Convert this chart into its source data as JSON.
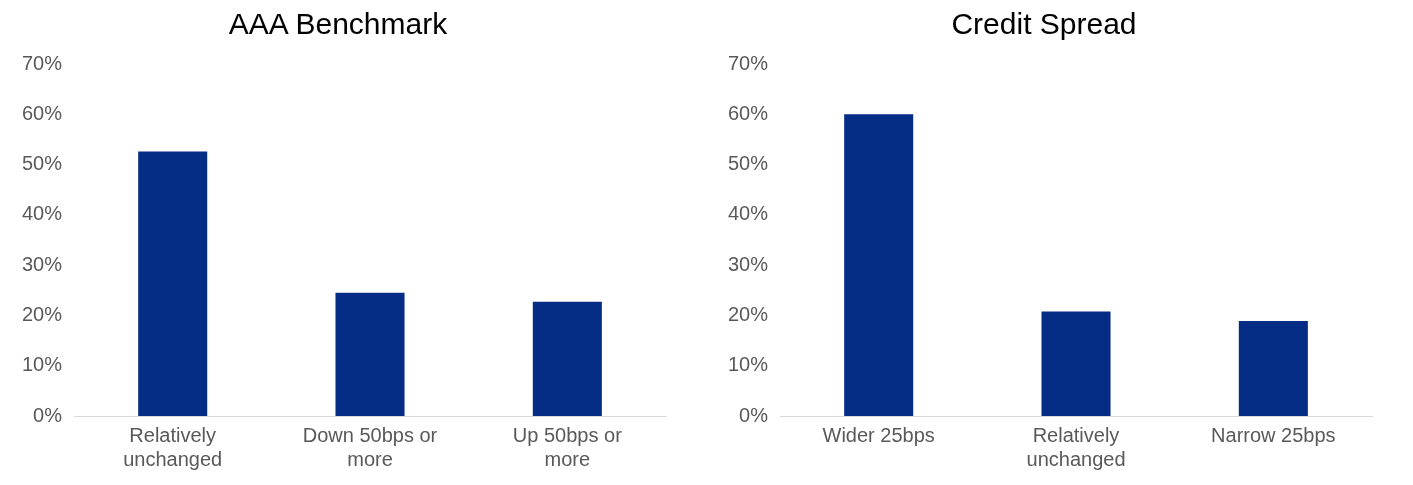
{
  "chart_data": [
    {
      "type": "bar",
      "title": "AAA Benchmark",
      "categories": [
        "Relatively unchanged",
        "Down 50bps or more",
        "Up 50bps or more"
      ],
      "values": [
        52.6,
        24.5,
        22.7
      ],
      "color": "#062d86",
      "ylim": [
        0,
        70
      ],
      "yticks": [
        {
          "value": 0,
          "label": "0%"
        },
        {
          "value": 10,
          "label": "10%"
        },
        {
          "value": 20,
          "label": "20%"
        },
        {
          "value": 30,
          "label": "30%"
        },
        {
          "value": 40,
          "label": "40%"
        },
        {
          "value": 50,
          "label": "50%"
        },
        {
          "value": 60,
          "label": "60%"
        },
        {
          "value": 70,
          "label": "70%"
        }
      ]
    },
    {
      "type": "bar",
      "title": "Credit Spread",
      "categories": [
        "Wider 25bps",
        "Relatively unchanged",
        "Narrow 25bps"
      ],
      "values": [
        60,
        20.8,
        18.9
      ],
      "color": "#062d86",
      "ylim": [
        0,
        70
      ],
      "yticks": [
        {
          "value": 0,
          "label": "0%"
        },
        {
          "value": 10,
          "label": "10%"
        },
        {
          "value": 20,
          "label": "20%"
        },
        {
          "value": 30,
          "label": "30%"
        },
        {
          "value": 40,
          "label": "40%"
        },
        {
          "value": 50,
          "label": "50%"
        },
        {
          "value": 60,
          "label": "60%"
        },
        {
          "value": 70,
          "label": "70%"
        }
      ]
    }
  ]
}
